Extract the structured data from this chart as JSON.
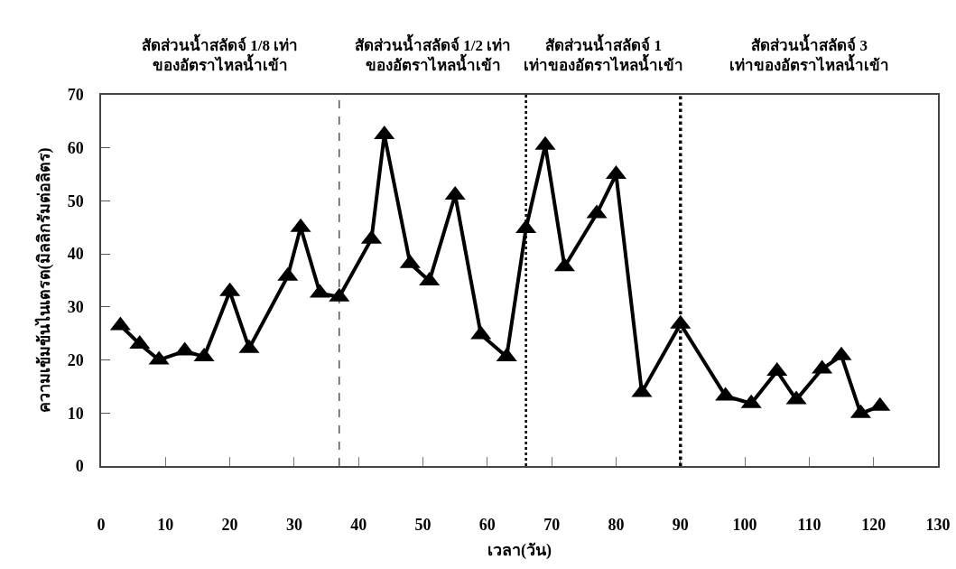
{
  "chart_data": {
    "type": "line",
    "xlabel": "เวลา(วัน)",
    "ylabel": "ความเข้มข้นไนเตรต(มิลลิกรัมต่อลิตร)",
    "annotations": [
      "สัดส่วนน้ำสลัดจ์ 1/8 เท่า\nของอัตราไหลน้ำเข้า",
      "สัดส่วนน้ำสลัดจ์ 1/2 เท่า\nของอัตราไหลน้ำเข้า",
      "สัดส่วนน้ำสลัดจ์ 1\nเท่าของอัตราไหลน้ำเข้า",
      "สัดส่วนน้ำสลัดจ์ 3\nเท่าของอัตราไหลน้ำเข้า"
    ],
    "x": [
      3,
      6,
      9,
      13,
      16,
      20,
      23,
      29,
      31,
      34,
      37,
      42,
      44,
      48,
      51,
      55,
      59,
      63,
      66,
      69,
      72,
      77,
      80,
      84,
      90,
      97,
      101,
      105,
      108,
      112,
      115,
      118,
      121
    ],
    "series": [
      {
        "color": "#000000",
        "values": [
          26.5,
          23,
          20,
          21.7,
          20.6,
          32.9,
          22.2,
          35.8,
          45,
          32.6,
          31.9,
          42.8,
          62.5,
          38.2,
          34.9,
          51.1,
          24.8,
          20.6,
          44.8,
          60.5,
          37.6,
          47.6,
          55,
          13.9,
          26.8,
          13.2,
          11.8,
          17.9,
          12.5,
          18.3,
          20.8,
          9.9,
          11.3
        ]
      }
    ],
    "ref_lines": [
      {
        "axis": "x",
        "value": 37,
        "line_style": "dashed",
        "color": "#000000"
      },
      {
        "axis": "x",
        "value": 66,
        "line_style": "dotted",
        "color": "#000000"
      },
      {
        "axis": "x",
        "value": 90,
        "line_style": "dotted",
        "color": "#000000"
      }
    ],
    "xlim": [
      0,
      130
    ],
    "xticks": [
      0,
      10,
      20,
      30,
      40,
      50,
      60,
      70,
      80,
      90,
      100,
      110,
      120,
      130
    ],
    "ylim": [
      0,
      70
    ],
    "yticks": [
      0,
      10,
      20,
      30,
      40,
      50,
      60,
      70
    ],
    "grid": false,
    "legend": false,
    "marker": "triangle",
    "line_style": "solid"
  }
}
